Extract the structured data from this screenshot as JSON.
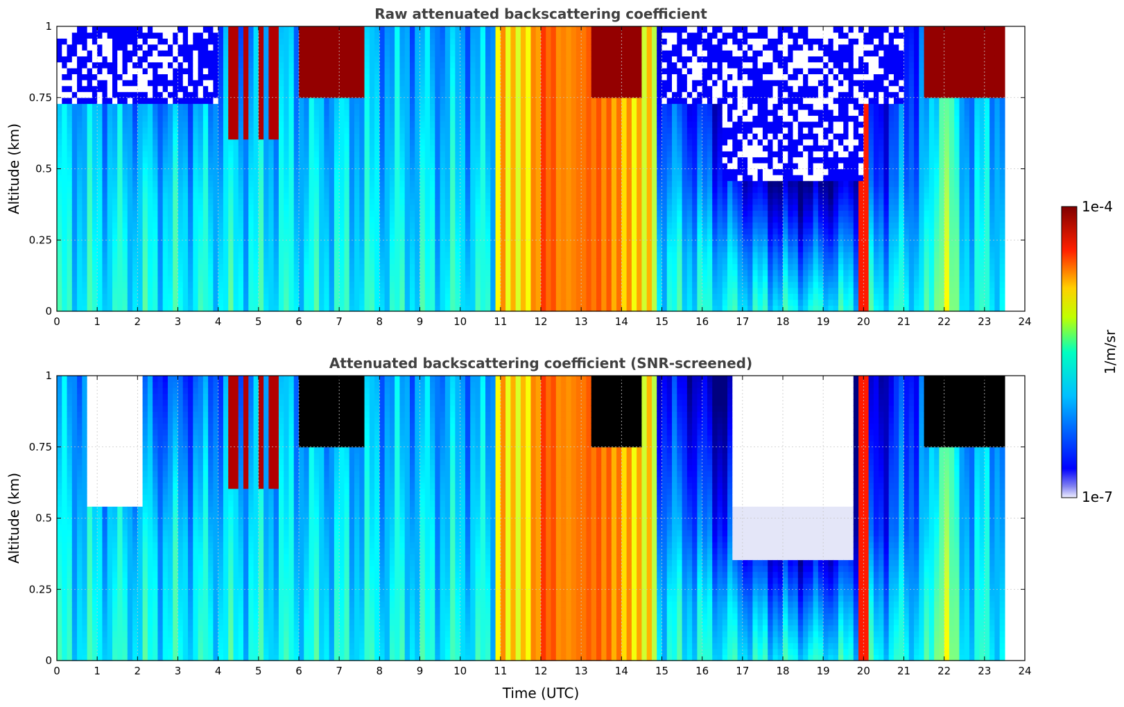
{
  "chart_data": [
    {
      "type": "heatmap",
      "title": "Raw attenuated backscattering coefficient",
      "xlabel": "",
      "ylabel": "Altitude (km)",
      "xlim": [
        0,
        24
      ],
      "ylim": [
        0,
        1
      ],
      "x_ticks": [
        "0",
        "1",
        "2",
        "3",
        "4",
        "5",
        "6",
        "7",
        "8",
        "9",
        "10",
        "11",
        "12",
        "13",
        "14",
        "15",
        "16",
        "17",
        "18",
        "19",
        "20",
        "21",
        "22",
        "23",
        "24"
      ],
      "y_ticks": [
        "0",
        "0.25",
        "0.5",
        "0.75",
        "1"
      ],
      "grid": true,
      "data_end_time": 23.5,
      "screened": false
    },
    {
      "type": "heatmap",
      "title": "Attenuated backscattering coefficient (SNR-screened)",
      "xlabel": "Time (UTC)",
      "ylabel": "Altitude (km)",
      "xlim": [
        0,
        24
      ],
      "ylim": [
        0,
        1
      ],
      "x_ticks": [
        "0",
        "1",
        "2",
        "3",
        "4",
        "5",
        "6",
        "7",
        "8",
        "9",
        "10",
        "11",
        "12",
        "13",
        "14",
        "15",
        "16",
        "17",
        "18",
        "19",
        "20",
        "21",
        "22",
        "23",
        "24"
      ],
      "y_ticks": [
        "0",
        "0.25",
        "0.5",
        "0.75",
        "1"
      ],
      "grid": true,
      "data_end_time": 23.5,
      "screened": true
    }
  ],
  "colorbar": {
    "label": "1/m/sr",
    "max_label": "1e-4",
    "min_label": "1e-7",
    "colormap": "jet"
  }
}
